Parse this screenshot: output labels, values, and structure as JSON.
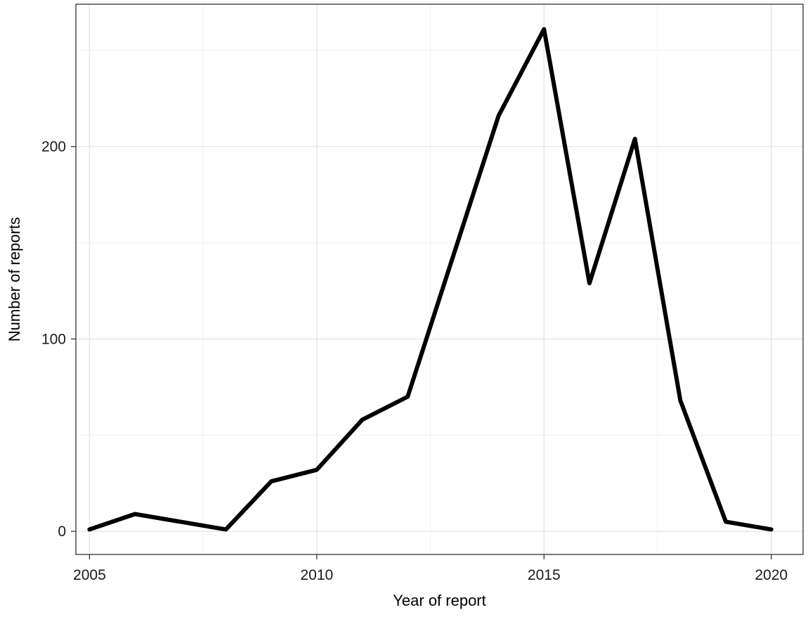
{
  "chart_data": {
    "type": "line",
    "title": "",
    "xlabel": "Year of report",
    "ylabel": "Number of reports",
    "xlim": [
      2004.7,
      2020.7
    ],
    "ylim": [
      -12,
      274
    ],
    "x_ticks": [
      2005,
      2010,
      2015,
      2020
    ],
    "x_minor_ticks": [
      2007.5,
      2012.5,
      2017.5
    ],
    "y_ticks": [
      0,
      100,
      200
    ],
    "y_minor_ticks": [
      50,
      150,
      250
    ],
    "grid": true,
    "legend": "none",
    "series": [
      {
        "color": "#000000",
        "x": [
          2005,
          2006,
          2007,
          2008,
          2009,
          2010,
          2011,
          2012,
          2013,
          2014,
          2015,
          2016,
          2017,
          2018,
          2019,
          2020
        ],
        "y": [
          1,
          9,
          5,
          1,
          26,
          32,
          58,
          70,
          143,
          216,
          261,
          129,
          204,
          68,
          5,
          1
        ]
      }
    ]
  }
}
